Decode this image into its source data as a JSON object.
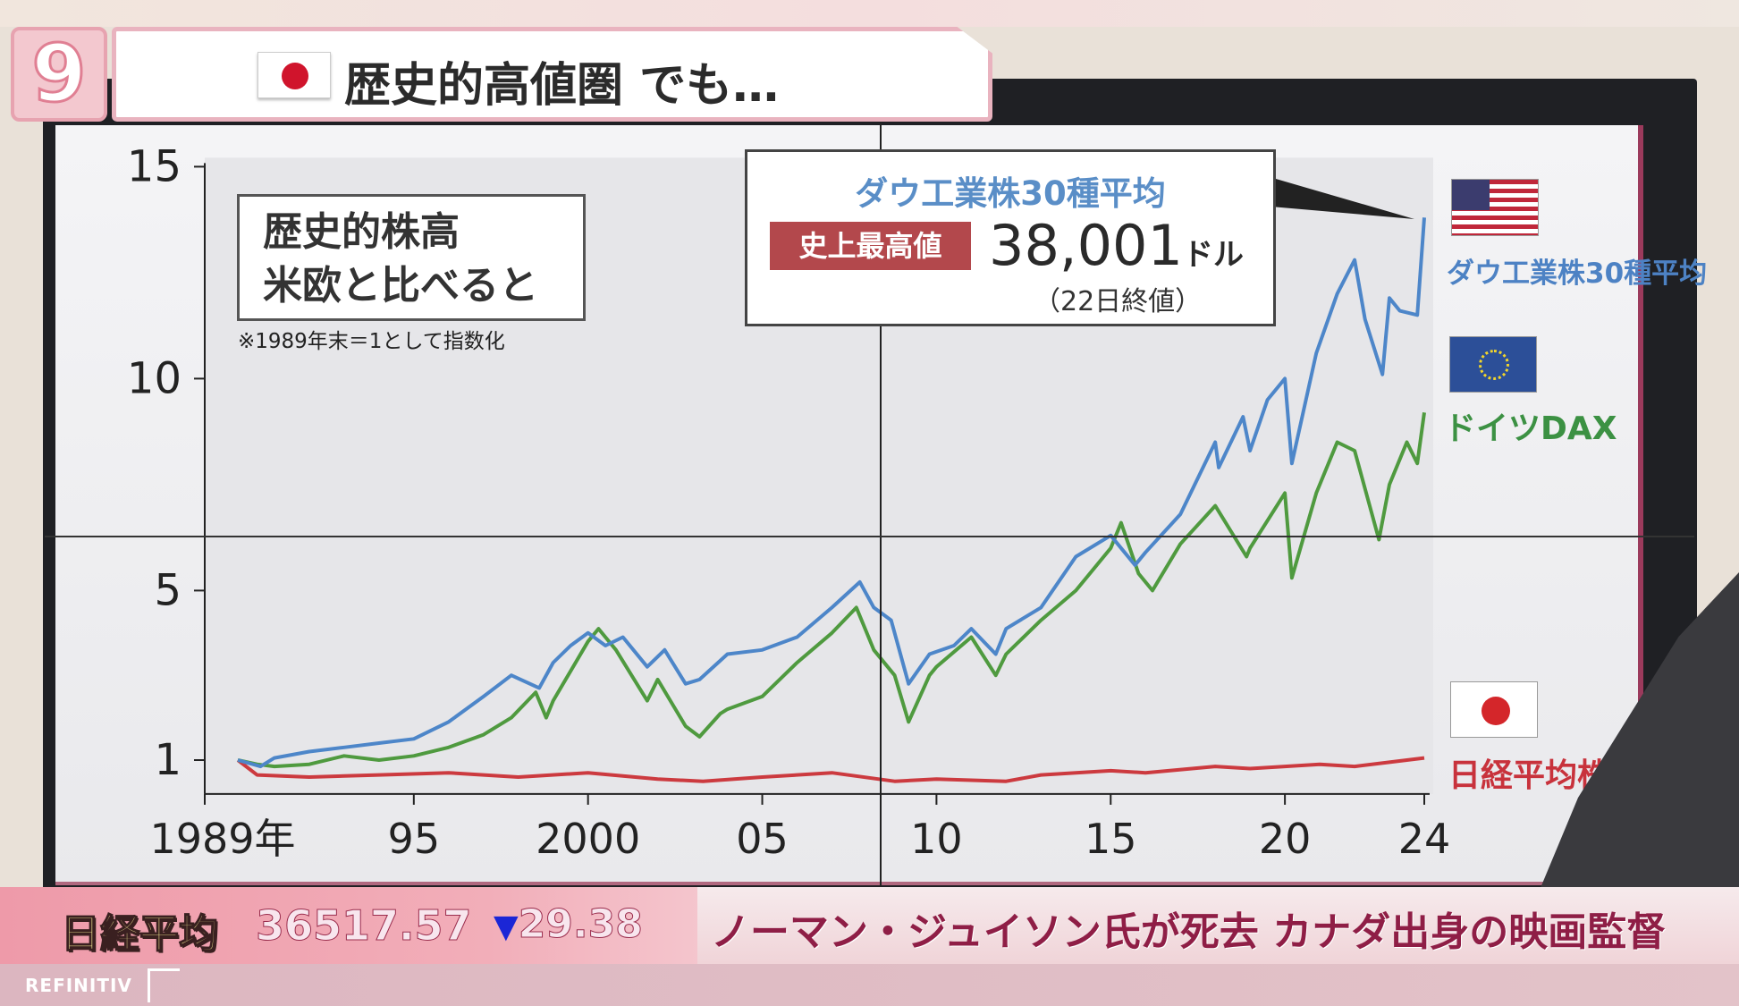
{
  "header": {
    "logo": "9",
    "title": "歴史的高値圏 でも…",
    "flag_icon": "japan-flag-icon"
  },
  "annotation": {
    "lines": [
      "歴史的株高",
      "米欧と比べると"
    ],
    "note": "※1989年末＝1として指数化"
  },
  "callout": {
    "title": "ダウ工業株30種平均",
    "badge": "史上最高値",
    "price": "38,001",
    "unit": "ドル",
    "close_note": "（22日終値）"
  },
  "legend": [
    {
      "label": "ダウ工業株30種平均",
      "flag": "us-flag-icon",
      "color": "#4d86c9"
    },
    {
      "label": "ドイツDAX",
      "flag": "eu-flag-icon",
      "color": "#4f9a3f"
    },
    {
      "label": "日経平均株価",
      "flag": "japan-flag-icon",
      "color": "#cc3a3f"
    }
  ],
  "ticker": {
    "label": "日経平均",
    "value": "36517.57",
    "change_symbol": "▼",
    "change": "29.38",
    "headline": "ノーマン・ジュイソン氏が死去 カナダ出身の映画監督",
    "source": "REFINITIV"
  },
  "chart_data": {
    "type": "line",
    "title": "",
    "xlabel": "",
    "ylabel": "",
    "xlim": [
      1989,
      2024
    ],
    "ylim": [
      0.2,
      15
    ],
    "x_ticks": [
      1989,
      1995,
      2000,
      2005,
      2010,
      2015,
      2020,
      2024
    ],
    "x_tick_labels": [
      "1989年",
      "95",
      "2000",
      "05",
      "10",
      "15",
      "20",
      "24"
    ],
    "y_ticks": [
      1,
      5,
      10,
      15
    ],
    "y_tick_labels": [
      "1",
      "5",
      "10",
      "15"
    ],
    "grid": false,
    "legend_position": "right",
    "series": [
      {
        "name": "ダウ工業株30種平均",
        "color": "#4d86c9",
        "points": [
          [
            1989.95,
            1
          ],
          [
            1990.6,
            0.85
          ],
          [
            1991,
            1.05
          ],
          [
            1992,
            1.2
          ],
          [
            1993,
            1.3
          ],
          [
            1994,
            1.4
          ],
          [
            1995,
            1.5
          ],
          [
            1996,
            1.9
          ],
          [
            1997,
            2.5
          ],
          [
            1997.8,
            3.0
          ],
          [
            1998.6,
            2.7
          ],
          [
            1999,
            3.3
          ],
          [
            1999.5,
            3.7
          ],
          [
            2000,
            4.0
          ],
          [
            2000.5,
            3.7
          ],
          [
            2001,
            3.9
          ],
          [
            2001.7,
            3.2
          ],
          [
            2002.2,
            3.6
          ],
          [
            2002.8,
            2.8
          ],
          [
            2003.2,
            2.9
          ],
          [
            2004,
            3.5
          ],
          [
            2005,
            3.6
          ],
          [
            2006,
            3.9
          ],
          [
            2007,
            4.6
          ],
          [
            2007.8,
            5.2
          ],
          [
            2008.2,
            4.6
          ],
          [
            2008.7,
            4.3
          ],
          [
            2009.2,
            2.8
          ],
          [
            2009.8,
            3.5
          ],
          [
            2010.5,
            3.7
          ],
          [
            2011,
            4.1
          ],
          [
            2011.7,
            3.5
          ],
          [
            2012,
            4.1
          ],
          [
            2013,
            4.6
          ],
          [
            2014,
            5.8
          ],
          [
            2015,
            6.3
          ],
          [
            2015.7,
            5.6
          ],
          [
            2016,
            5.9
          ],
          [
            2017,
            6.8
          ],
          [
            2018,
            8.5
          ],
          [
            2018.1,
            7.9
          ],
          [
            2018.8,
            9.1
          ],
          [
            2019,
            8.3
          ],
          [
            2019.5,
            9.5
          ],
          [
            2020,
            10.0
          ],
          [
            2020.2,
            8.0
          ],
          [
            2020.9,
            10.6
          ],
          [
            2021.5,
            12.0
          ],
          [
            2022,
            12.8
          ],
          [
            2022.3,
            11.4
          ],
          [
            2022.8,
            10.1
          ],
          [
            2023,
            11.9
          ],
          [
            2023.3,
            11.6
          ],
          [
            2023.8,
            11.5
          ],
          [
            2024,
            13.8
          ]
        ]
      },
      {
        "name": "ドイツDAX",
        "color": "#4f9a3f",
        "points": [
          [
            1989.95,
            1
          ],
          [
            1990.5,
            0.9
          ],
          [
            1991,
            0.85
          ],
          [
            1992,
            0.9
          ],
          [
            1993,
            1.1
          ],
          [
            1994,
            1.0
          ],
          [
            1995,
            1.1
          ],
          [
            1996,
            1.3
          ],
          [
            1997,
            1.6
          ],
          [
            1997.8,
            2.0
          ],
          [
            1998.5,
            2.6
          ],
          [
            1998.8,
            2.0
          ],
          [
            1999,
            2.4
          ],
          [
            2000,
            3.8
          ],
          [
            2000.3,
            4.1
          ],
          [
            2000.8,
            3.6
          ],
          [
            2001.7,
            2.4
          ],
          [
            2002,
            2.9
          ],
          [
            2002.8,
            1.8
          ],
          [
            2003.2,
            1.55
          ],
          [
            2003.8,
            2.1
          ],
          [
            2004,
            2.2
          ],
          [
            2005,
            2.5
          ],
          [
            2006,
            3.3
          ],
          [
            2007,
            4.0
          ],
          [
            2007.7,
            4.6
          ],
          [
            2008.2,
            3.6
          ],
          [
            2008.8,
            3.0
          ],
          [
            2009.2,
            1.9
          ],
          [
            2009.8,
            3.0
          ],
          [
            2010,
            3.2
          ],
          [
            2011,
            3.9
          ],
          [
            2011.7,
            3.0
          ],
          [
            2012,
            3.5
          ],
          [
            2013,
            4.3
          ],
          [
            2014,
            5.0
          ],
          [
            2015,
            6.0
          ],
          [
            2015.3,
            6.6
          ],
          [
            2015.8,
            5.4
          ],
          [
            2016.2,
            5.0
          ],
          [
            2017,
            6.1
          ],
          [
            2018,
            7.0
          ],
          [
            2018.9,
            5.8
          ],
          [
            2019,
            6.0
          ],
          [
            2020,
            7.3
          ],
          [
            2020.2,
            5.3
          ],
          [
            2020.9,
            7.3
          ],
          [
            2021.5,
            8.5
          ],
          [
            2022,
            8.3
          ],
          [
            2022.7,
            6.2
          ],
          [
            2023,
            7.5
          ],
          [
            2023.5,
            8.5
          ],
          [
            2023.8,
            8.0
          ],
          [
            2024,
            9.2
          ]
        ]
      },
      {
        "name": "日経平均株価",
        "color": "#cc3a3f",
        "points": [
          [
            1989.95,
            1
          ],
          [
            1990.5,
            0.65
          ],
          [
            1992,
            0.6
          ],
          [
            1994,
            0.65
          ],
          [
            1996,
            0.7
          ],
          [
            1998,
            0.6
          ],
          [
            2000,
            0.7
          ],
          [
            2002,
            0.55
          ],
          [
            2003.3,
            0.5
          ],
          [
            2005,
            0.6
          ],
          [
            2007,
            0.7
          ],
          [
            2008.8,
            0.5
          ],
          [
            2010,
            0.55
          ],
          [
            2012,
            0.5
          ],
          [
            2013,
            0.65
          ],
          [
            2015,
            0.75
          ],
          [
            2016,
            0.7
          ],
          [
            2018,
            0.85
          ],
          [
            2019,
            0.8
          ],
          [
            2020,
            0.85
          ],
          [
            2021,
            0.9
          ],
          [
            2022,
            0.85
          ],
          [
            2023,
            0.95
          ],
          [
            2024,
            1.05
          ]
        ]
      }
    ]
  }
}
